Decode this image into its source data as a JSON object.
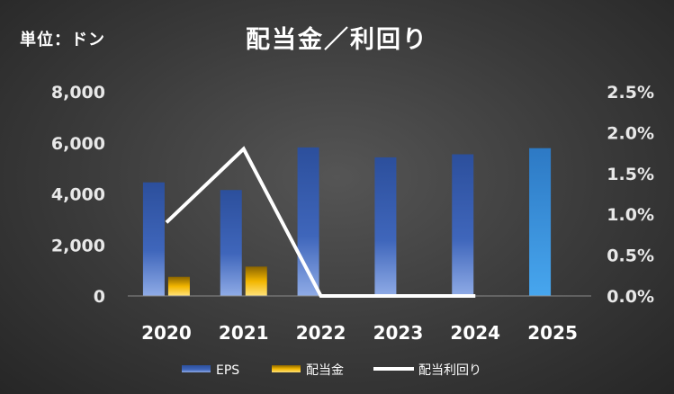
{
  "header": {
    "unit": "単位：ドン",
    "title": "配当金／利回り"
  },
  "chart_data": {
    "type": "bar",
    "categories": [
      "2020",
      "2021",
      "2022",
      "2023",
      "2024",
      "2025"
    ],
    "series": [
      {
        "name": "EPS",
        "type": "bar",
        "axis": "left",
        "values": [
          4450,
          4150,
          5820,
          5430,
          5550,
          5790
        ]
      },
      {
        "name": "配当金",
        "type": "bar",
        "axis": "left",
        "values": [
          750,
          1150,
          0,
          0,
          0,
          null
        ]
      },
      {
        "name": "配当利回り",
        "type": "line",
        "axis": "right",
        "values": [
          0.009,
          0.018,
          0.0,
          0.0,
          0.0,
          null
        ]
      }
    ],
    "ylim": [
      0,
      8000
    ],
    "yticks": [
      "0",
      "2,000",
      "4,000",
      "6,000",
      "8,000"
    ],
    "y2lim": [
      0,
      0.025
    ],
    "y2ticks": [
      "0.0%",
      "0.5%",
      "1.0%",
      "1.5%",
      "2.0%",
      "2.5%"
    ],
    "legend": "bottom",
    "grid": false,
    "colors": {
      "eps": "#4472c4",
      "eps_forecast": "#3a8fd6",
      "dividend": "#ffc000",
      "yield": "#ffffff"
    }
  }
}
